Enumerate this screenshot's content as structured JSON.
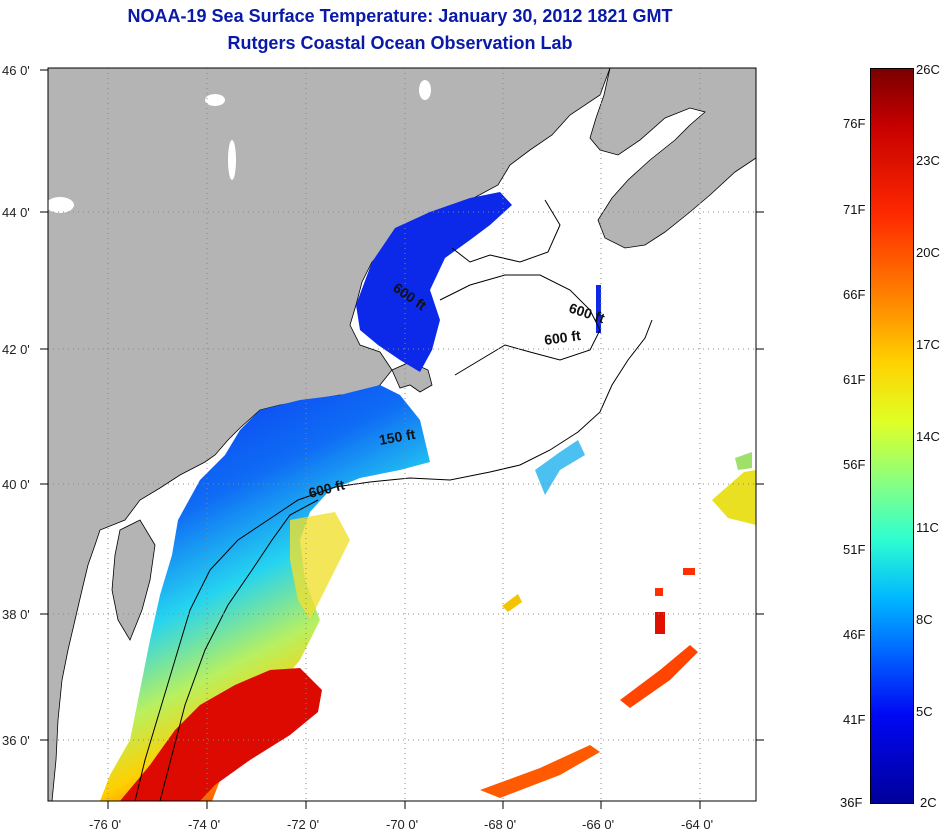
{
  "title": {
    "line1": "NOAA-19 Sea Surface Temperature:  January 30, 2012 1821 GMT",
    "line2": "Rutgers Coastal Ocean Observation Lab"
  },
  "axes": {
    "lat_labels": [
      "46 0'",
      "44 0'",
      "42 0'",
      "40 0'",
      "38 0'",
      "36 0'"
    ],
    "lon_labels": [
      "-76 0'",
      "-74 0'",
      "-72 0'",
      "-70 0'",
      "-68 0'",
      "-66 0'",
      "-64 0'"
    ]
  },
  "isobaths": [
    "600 ft",
    "600 ft",
    "600 ft",
    "150 ft",
    "600 ft"
  ],
  "colorbar": {
    "fahrenheit": [
      "76F",
      "71F",
      "66F",
      "61F",
      "56F",
      "51F",
      "46F",
      "41F",
      "36F"
    ],
    "celsius": [
      "26C",
      "23C",
      "20C",
      "17C",
      "14C",
      "11C",
      "8C",
      "5C",
      "2C"
    ]
  },
  "colors": {
    "title": "#0a1aa8",
    "land": "#b4b4b4",
    "ocean_no_data": "#ffffff",
    "cold": "#0018e0",
    "warm": "#dc0a00"
  }
}
